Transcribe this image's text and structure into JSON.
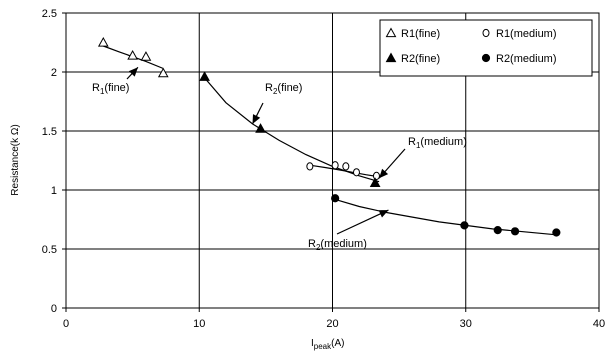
{
  "chart_data": {
    "type": "scatter",
    "xlabel": "I",
    "xlabel_sub": "peak",
    "xlabel_unit": "(A)",
    "ylabel": "Resistance(k Ω)",
    "xlim": [
      0,
      40
    ],
    "ylim": [
      0,
      2.5
    ],
    "xticks": [
      0,
      10,
      20,
      30,
      40
    ],
    "yticks": [
      0,
      0.5,
      1,
      1.5,
      2,
      2.5
    ],
    "xtick_labels": [
      "0",
      "10",
      "20",
      "30",
      "40"
    ],
    "ytick_labels": [
      "0",
      "0.5",
      "1",
      "1.5",
      "2",
      "2.5"
    ],
    "grid": true,
    "legend_position": "top-right",
    "series": [
      {
        "name": "R1(fine)",
        "marker": "open-triangle",
        "points": [
          [
            2.8,
            2.25
          ],
          [
            5.0,
            2.14
          ],
          [
            6.0,
            2.13
          ],
          [
            7.3,
            1.99
          ]
        ],
        "trend": [
          [
            2.8,
            2.22
          ],
          [
            4.0,
            2.17
          ],
          [
            5.0,
            2.13
          ],
          [
            6.0,
            2.09
          ],
          [
            7.3,
            2.03
          ]
        ]
      },
      {
        "name": "R1(medium)",
        "marker": "open-circle",
        "points": [
          [
            18.3,
            1.2
          ],
          [
            20.2,
            1.21
          ],
          [
            21.0,
            1.2
          ],
          [
            21.8,
            1.15
          ],
          [
            23.3,
            1.12
          ]
        ],
        "trend": [
          [
            18.3,
            1.21
          ],
          [
            19.5,
            1.19
          ],
          [
            20.5,
            1.17
          ],
          [
            21.5,
            1.15
          ],
          [
            22.5,
            1.13
          ],
          [
            23.6,
            1.11
          ]
        ]
      },
      {
        "name": "R2(fine)",
        "marker": "filled-triangle",
        "points": [
          [
            10.4,
            1.96
          ],
          [
            14.6,
            1.52
          ],
          [
            23.2,
            1.06
          ]
        ],
        "trend": [
          [
            10.4,
            1.95
          ],
          [
            12.0,
            1.74
          ],
          [
            14.0,
            1.56
          ],
          [
            16.0,
            1.42
          ],
          [
            18.0,
            1.3
          ],
          [
            20.0,
            1.2
          ],
          [
            22.0,
            1.12
          ],
          [
            23.5,
            1.07
          ]
        ]
      },
      {
        "name": "R2(medium)",
        "marker": "filled-circle",
        "points": [
          [
            20.2,
            0.93
          ],
          [
            29.9,
            0.7
          ],
          [
            32.4,
            0.66
          ],
          [
            33.7,
            0.65
          ],
          [
            36.8,
            0.64
          ]
        ],
        "trend": [
          [
            20.2,
            0.92
          ],
          [
            22.0,
            0.86
          ],
          [
            24.0,
            0.81
          ],
          [
            26.0,
            0.77
          ],
          [
            28.0,
            0.73
          ],
          [
            30.0,
            0.7
          ],
          [
            32.0,
            0.67
          ],
          [
            34.0,
            0.65
          ],
          [
            36.8,
            0.62
          ]
        ]
      }
    ],
    "annotations": [
      {
        "main": "R",
        "sub": "1",
        "rest": "(fine)",
        "arrow_to": [
          5.4,
          2.04
        ]
      },
      {
        "main": "R",
        "sub": "2",
        "rest": "(fine)",
        "arrow_to": [
          14.0,
          1.56
        ]
      },
      {
        "main": "R",
        "sub": "1",
        "rest": "(medium)",
        "arrow_to": [
          23.5,
          1.1
        ]
      },
      {
        "main": "R",
        "sub": "2",
        "rest": "(medium)",
        "arrow_to": [
          24.2,
          0.83
        ]
      }
    ]
  }
}
